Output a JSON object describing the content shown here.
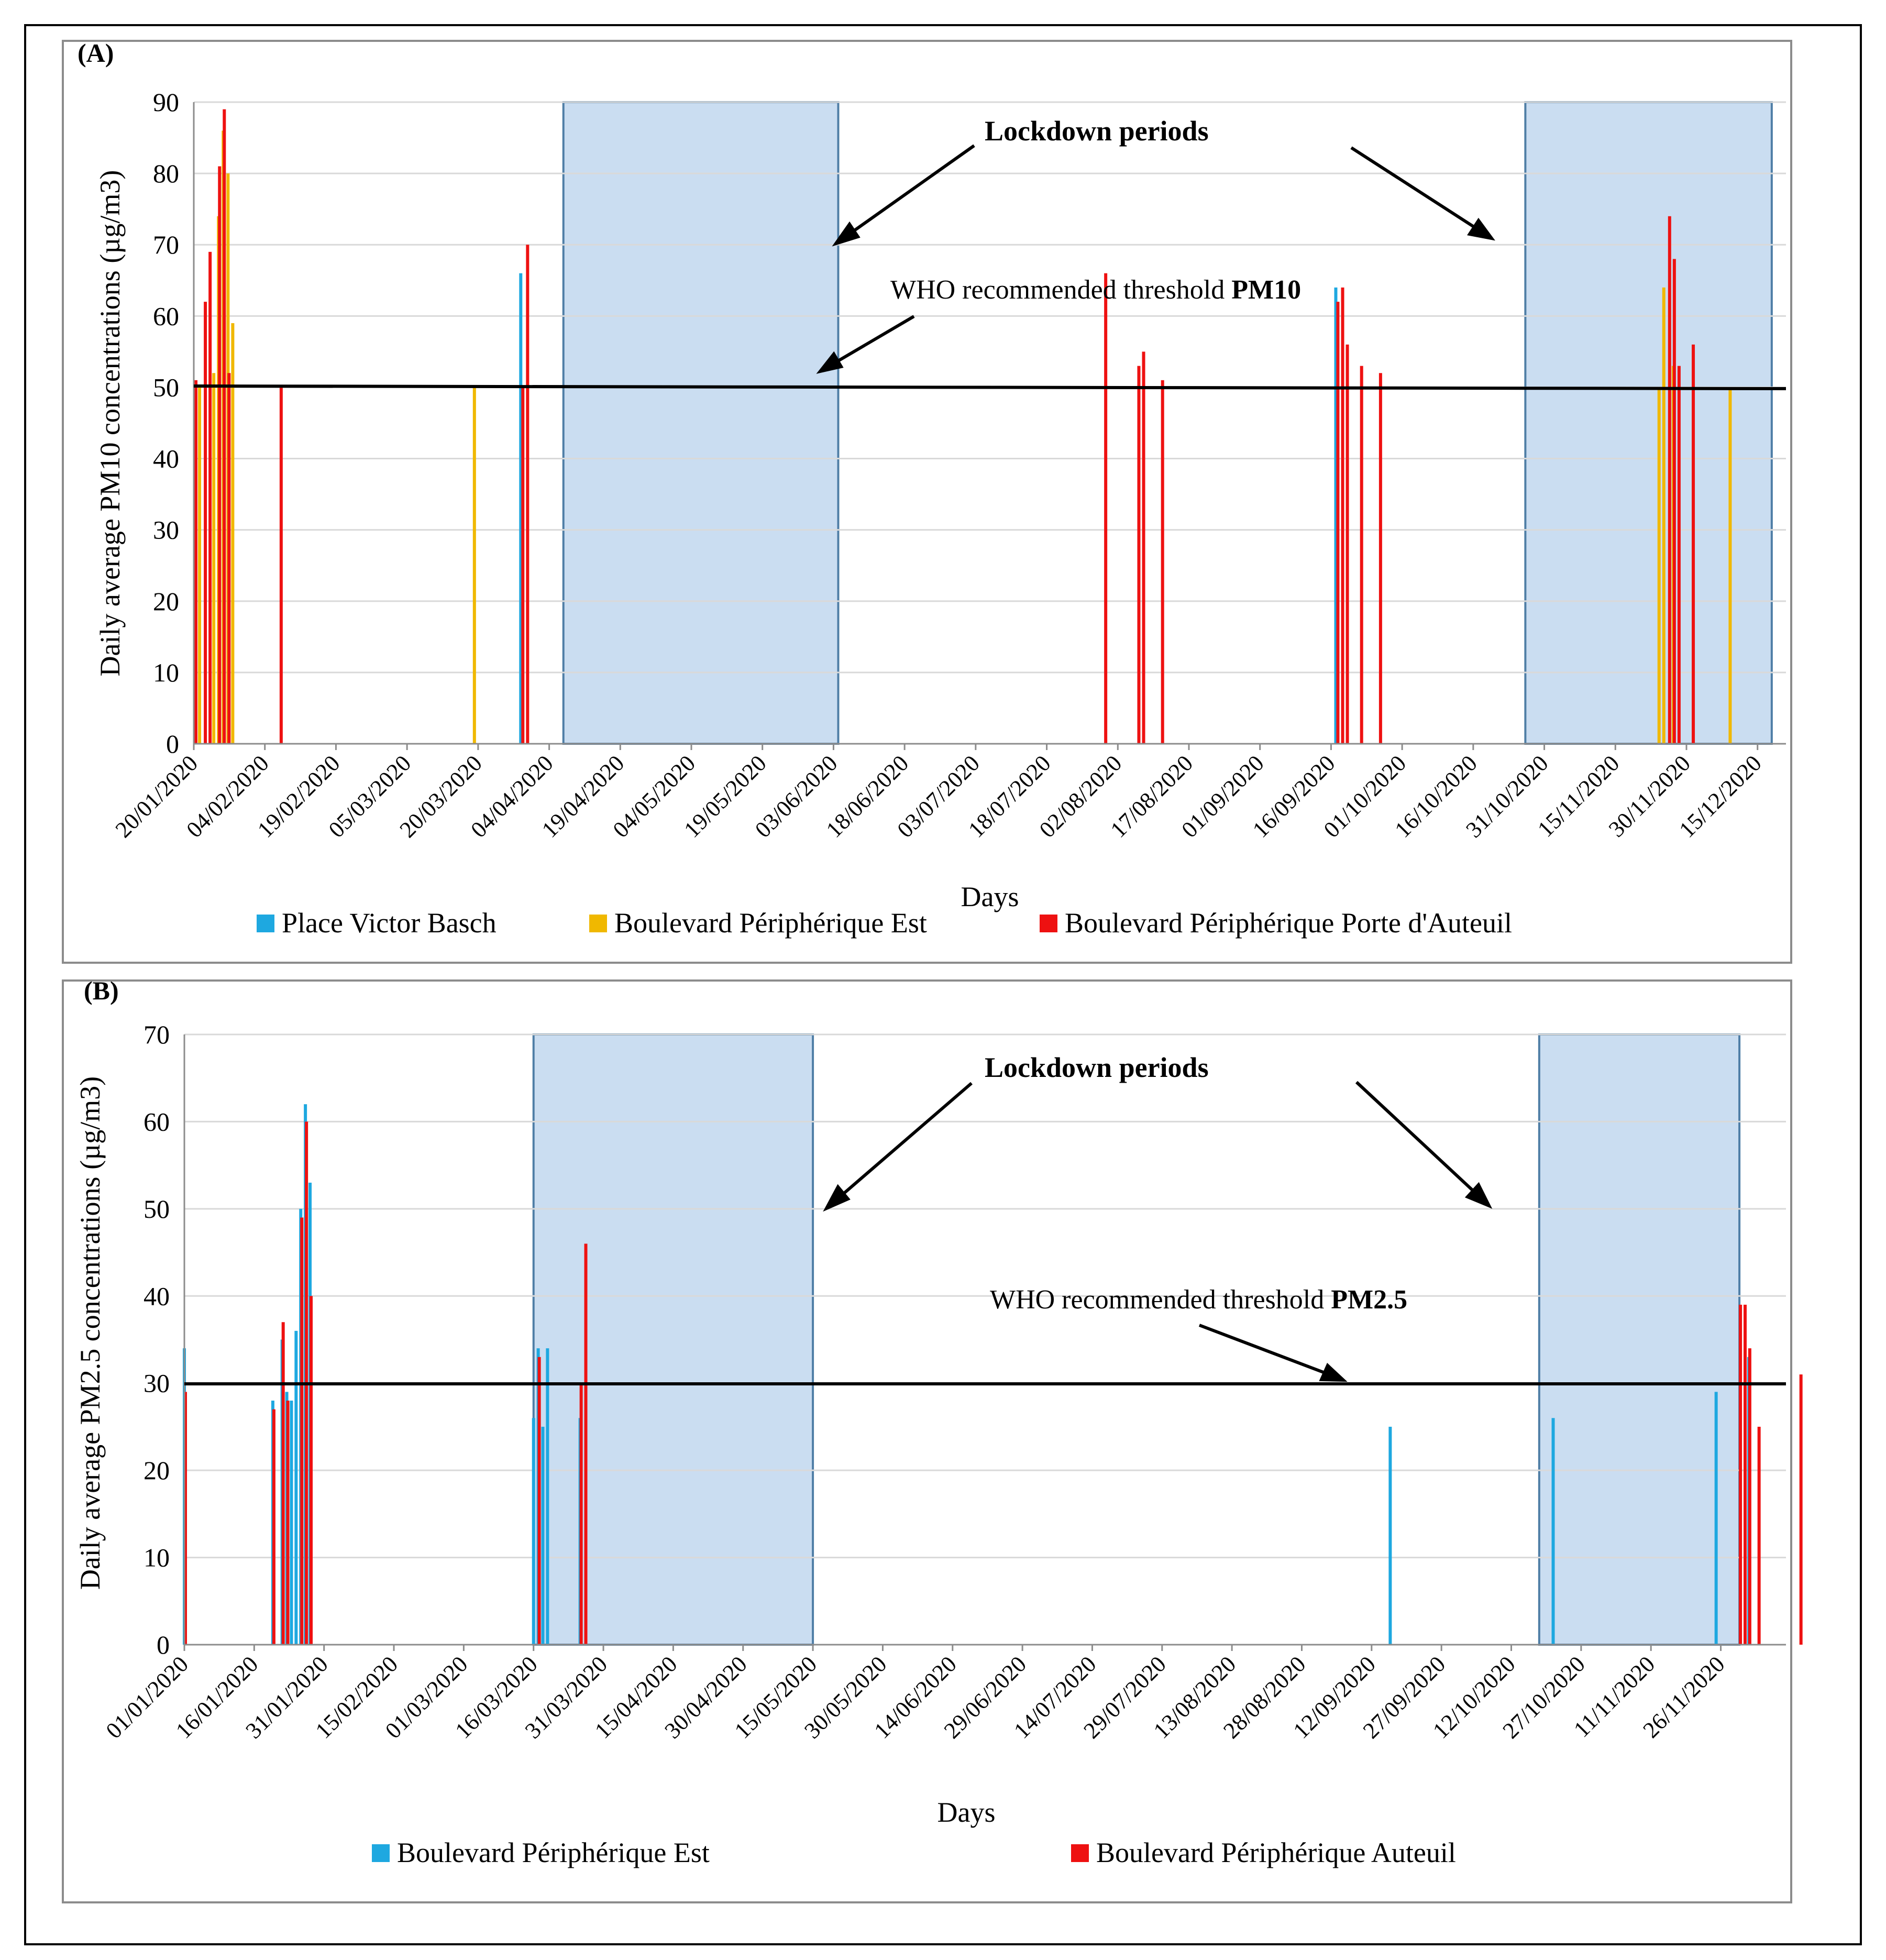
{
  "chart_data": [
    {
      "type": "bar",
      "panel_label": "(A)",
      "title": "",
      "xlabel": "Days",
      "ylabel": "Daily average PM10 concentrations  (µg/m3)",
      "ylim": [
        0,
        90
      ],
      "yticks": [
        "0",
        "10",
        "20",
        "30",
        "40",
        "50",
        "60",
        "70",
        "80",
        "90"
      ],
      "xlim": [
        "2020-01-20",
        "2020-12-21"
      ],
      "xtick_labels": [
        "20/01/2020",
        "04/02/2020",
        "19/02/2020",
        "05/03/2020",
        "20/03/2020",
        "04/04/2020",
        "19/04/2020",
        "04/05/2020",
        "19/05/2020",
        "03/06/2020",
        "18/06/2020",
        "03/07/2020",
        "18/07/2020",
        "02/08/2020",
        "17/08/2020",
        "01/09/2020",
        "16/09/2020",
        "01/10/2020",
        "16/10/2020",
        "31/10/2020",
        "15/11/2020",
        "30/11/2020",
        "15/12/2020"
      ],
      "grid": true,
      "legend_position": "bottom",
      "threshold": {
        "value": 50,
        "label_prefix": "WHO recommended threshold ",
        "label_bold": "PM10"
      },
      "lockdown": {
        "label": "Lockdown periods",
        "periods": [
          [
            "2020-04-07",
            "2020-06-04"
          ],
          [
            "2020-10-27",
            "2020-12-18"
          ]
        ]
      },
      "series": [
        {
          "name": "Place Victor Basch",
          "color": "#1ea8e0",
          "points": [
            [
              "2020-03-29",
              66
            ],
            [
              "2020-09-17",
              64
            ]
          ]
        },
        {
          "name": "Boulevard Périphérique Est",
          "color": "#f0b800",
          "points": [
            [
              "2020-01-21",
              50
            ],
            [
              "2020-01-24",
              52
            ],
            [
              "2020-01-25",
              74
            ],
            [
              "2020-01-26",
              86
            ],
            [
              "2020-01-27",
              80
            ],
            [
              "2020-01-28",
              59
            ],
            [
              "2020-03-19",
              50
            ],
            [
              "2020-11-24",
              50
            ],
            [
              "2020-11-25",
              64
            ],
            [
              "2020-11-27",
              53
            ],
            [
              "2020-12-09",
              50
            ]
          ]
        },
        {
          "name": "Boulevard Périphérique Porte d'Auteuil",
          "color": "#ee1111",
          "points": [
            [
              "2020-01-20",
              51
            ],
            [
              "2020-01-22",
              62
            ],
            [
              "2020-01-23",
              69
            ],
            [
              "2020-01-25",
              81
            ],
            [
              "2020-01-26",
              89
            ],
            [
              "2020-01-27",
              52
            ],
            [
              "2020-02-07",
              50
            ],
            [
              "2020-03-29",
              50
            ],
            [
              "2020-03-30",
              70
            ],
            [
              "2020-07-30",
              66
            ],
            [
              "2020-08-06",
              53
            ],
            [
              "2020-08-07",
              55
            ],
            [
              "2020-08-11",
              51
            ],
            [
              "2020-09-17",
              62
            ],
            [
              "2020-09-18",
              64
            ],
            [
              "2020-09-19",
              56
            ],
            [
              "2020-09-22",
              53
            ],
            [
              "2020-09-26",
              52
            ],
            [
              "2020-11-26",
              74
            ],
            [
              "2020-11-27",
              68
            ],
            [
              "2020-11-28",
              53
            ],
            [
              "2020-12-01",
              56
            ]
          ]
        }
      ]
    },
    {
      "type": "bar",
      "panel_label": "(B)",
      "title": "",
      "xlabel": "Days",
      "ylabel": "Daily average PM2.5 concentrations  (µg/m3)",
      "ylim": [
        0,
        70
      ],
      "yticks": [
        "0",
        "10",
        "20",
        "30",
        "40",
        "50",
        "60",
        "70"
      ],
      "xlim": [
        "2020-01-01",
        "2020-12-10"
      ],
      "xtick_labels": [
        "01/01/2020",
        "16/01/2020",
        "31/01/2020",
        "15/02/2020",
        "01/03/2020",
        "16/03/2020",
        "31/03/2020",
        "15/04/2020",
        "30/04/2020",
        "15/05/2020",
        "30/05/2020",
        "14/06/2020",
        "29/06/2020",
        "14/07/2020",
        "29/07/2020",
        "13/08/2020",
        "28/08/2020",
        "12/09/2020",
        "27/09/2020",
        "12/10/2020",
        "27/10/2020",
        "11/11/2020",
        "26/11/2020"
      ],
      "grid": true,
      "legend_position": "bottom",
      "threshold": {
        "value": 30,
        "label_prefix": "WHO recommended threshold ",
        "label_bold": "PM2.5"
      },
      "lockdown": {
        "label": "Lockdown periods",
        "periods": [
          [
            "2020-03-16",
            "2020-05-15"
          ],
          [
            "2020-10-18",
            "2020-11-30"
          ]
        ]
      },
      "series": [
        {
          "name": "Boulevard Périphérique Est",
          "color": "#1ea8e0",
          "points": [
            [
              "2020-01-01",
              34
            ],
            [
              "2020-01-20",
              28
            ],
            [
              "2020-01-22",
              35
            ],
            [
              "2020-01-23",
              29
            ],
            [
              "2020-01-24",
              28
            ],
            [
              "2020-01-25",
              36
            ],
            [
              "2020-01-26",
              50
            ],
            [
              "2020-01-27",
              62
            ],
            [
              "2020-01-28",
              53
            ],
            [
              "2020-03-16",
              26
            ],
            [
              "2020-03-17",
              34
            ],
            [
              "2020-03-18",
              25
            ],
            [
              "2020-03-19",
              34
            ],
            [
              "2020-03-26",
              26
            ],
            [
              "2020-09-16",
              25
            ],
            [
              "2020-10-21",
              26
            ],
            [
              "2020-11-25",
              29
            ],
            [
              "2020-12-02",
              33
            ]
          ]
        },
        {
          "name": "Boulevard Périphérique Auteuil",
          "color": "#ee1111",
          "points": [
            [
              "2020-01-01",
              29
            ],
            [
              "2020-01-20",
              27
            ],
            [
              "2020-01-22",
              37
            ],
            [
              "2020-01-23",
              28
            ],
            [
              "2020-01-26",
              49
            ],
            [
              "2020-01-27",
              60
            ],
            [
              "2020-01-28",
              40
            ],
            [
              "2020-03-17",
              33
            ],
            [
              "2020-03-26",
              30
            ],
            [
              "2020-03-27",
              46
            ],
            [
              "2020-11-30",
              39
            ],
            [
              "2020-12-01",
              39
            ],
            [
              "2020-12-02",
              34
            ],
            [
              "2020-12-04",
              25
            ],
            [
              "2020-12-13",
              31
            ]
          ]
        }
      ]
    }
  ]
}
